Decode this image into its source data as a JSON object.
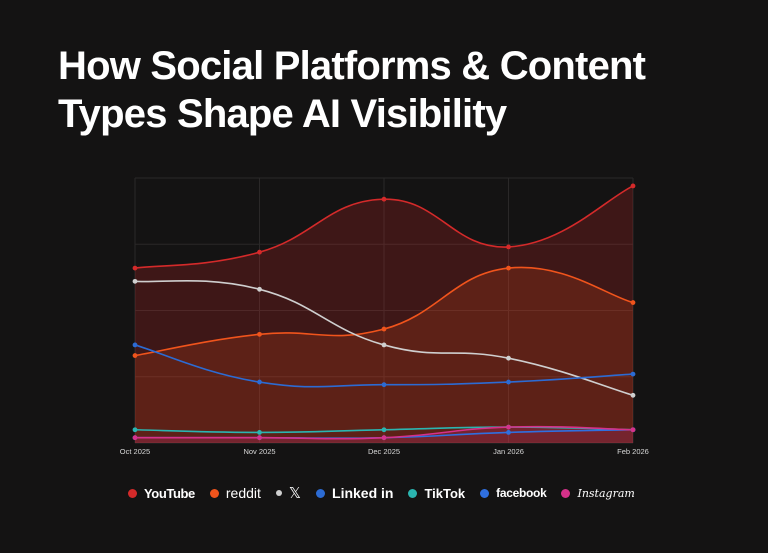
{
  "title_lines": [
    "How Social Platforms & Content",
    "Types Shape AI Visibility"
  ],
  "chart_data": {
    "type": "line",
    "title": "How Social Platforms & Content Types Shape AI Visibility",
    "categories": [
      "Oct 2025",
      "Nov 2025",
      "Dec 2025",
      "Jan 2026",
      "Feb 2026"
    ],
    "ylim": [
      0,
      100
    ],
    "grid": true,
    "series": [
      {
        "name": "YouTube",
        "color": "#d42a2a",
        "area": true,
        "values": [
          66,
          72,
          92,
          74,
          97
        ]
      },
      {
        "name": "reddit",
        "color": "#f0541c",
        "area": true,
        "values": [
          33,
          41,
          43,
          66,
          53
        ]
      },
      {
        "name": "X",
        "color": "#cfcfcf",
        "area": false,
        "values": [
          61,
          58,
          37,
          32,
          18
        ]
      },
      {
        "name": "LinkedIn",
        "color": "#2c6bd3",
        "area": false,
        "values": [
          37,
          23,
          22,
          23,
          26
        ]
      },
      {
        "name": "TikTok",
        "color": "#2bb5b0",
        "area": false,
        "values": [
          5,
          4,
          5,
          6,
          5
        ]
      },
      {
        "name": "facebook",
        "color": "#2f6fe0",
        "area": false,
        "values": [
          2,
          2,
          2,
          4,
          5
        ]
      },
      {
        "name": "Instagram",
        "color": "#d6318a",
        "area": true,
        "values": [
          2,
          2,
          2,
          6,
          5
        ]
      }
    ]
  },
  "legend": [
    {
      "label": "YouTube",
      "color": "#d42a2a"
    },
    {
      "label": "reddit",
      "color": "#f0541c"
    },
    {
      "label": "𝕏",
      "color": "#cfcfcf"
    },
    {
      "label": "Linked in",
      "color": "#2c6bd3"
    },
    {
      "label": "TikTok",
      "color": "#2bb5b0"
    },
    {
      "label": "facebook",
      "color": "#2f6fe0"
    },
    {
      "label": "Instagram",
      "color": "#d6318a"
    }
  ]
}
